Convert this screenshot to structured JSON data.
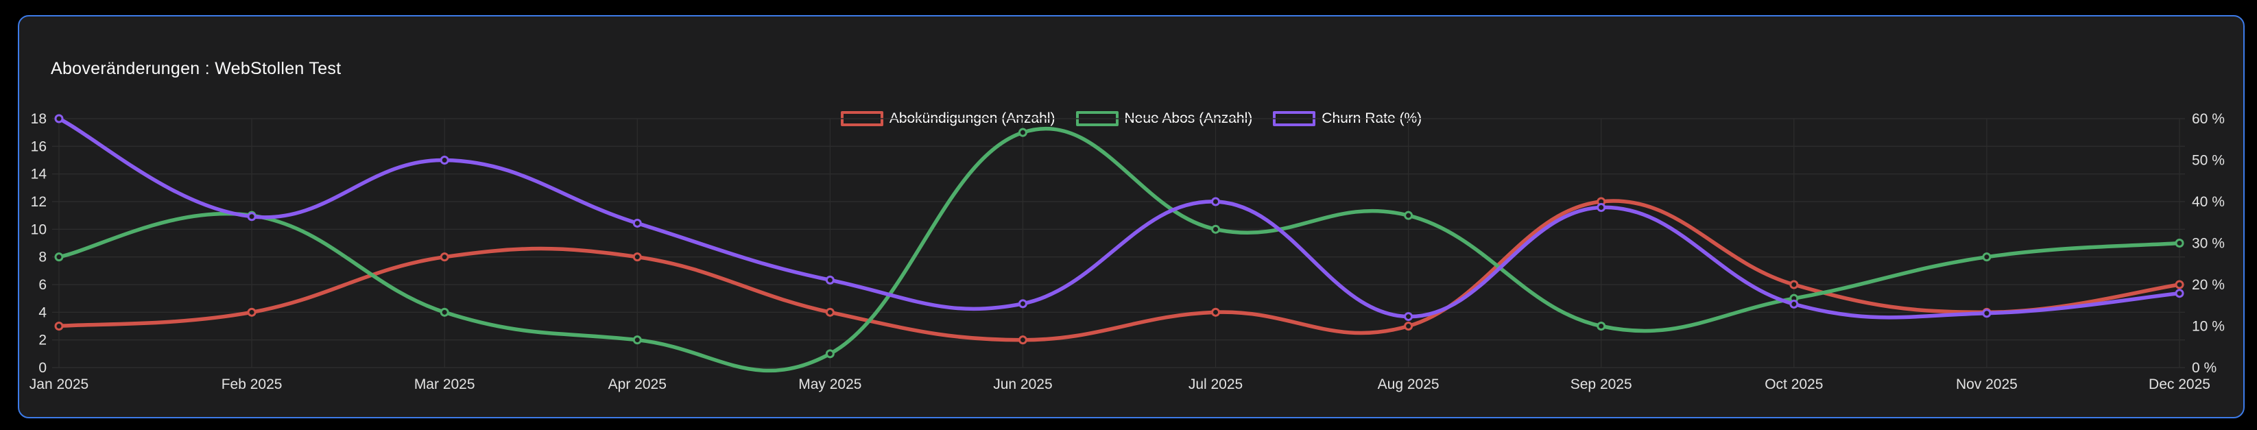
{
  "card": {
    "title": "Aboveränderungen : WebStollen Test",
    "background": "#1d1d1e",
    "border_color": "#3d7be8"
  },
  "chart_data": {
    "type": "line",
    "title": "Aboveränderungen : WebStollen Test",
    "x": [
      "Jan 2025",
      "Feb 2025",
      "Mar 2025",
      "Apr 2025",
      "May 2025",
      "Jun 2025",
      "Jul 2025",
      "Aug 2025",
      "Sep 2025",
      "Oct 2025",
      "Nov 2025",
      "Dec 2025"
    ],
    "series": [
      {
        "name": "Abokündigungen (Anzahl)",
        "axis": "left",
        "color": "#d2544a",
        "values": [
          3,
          4,
          8,
          8,
          4,
          2,
          4,
          3,
          12,
          6,
          4,
          6
        ]
      },
      {
        "name": "Neue Abos (Anzahl)",
        "axis": "left",
        "color": "#4fae6b",
        "values": [
          8,
          11,
          4,
          2,
          1,
          17,
          10,
          11,
          3,
          5,
          8,
          9
        ]
      },
      {
        "name": "Churn Rate (%)",
        "axis": "right",
        "color": "#8a5cf0",
        "values": [
          60,
          36.4,
          50,
          34.8,
          21.1,
          15.4,
          40,
          12.3,
          38.6,
          15.3,
          13.1,
          17.9
        ]
      }
    ],
    "left_axis": {
      "min": 0,
      "max": 18,
      "ticks": [
        0,
        2,
        4,
        6,
        8,
        10,
        12,
        14,
        16,
        18
      ],
      "suffix": ""
    },
    "right_axis": {
      "min": 0,
      "max": 60,
      "ticks": [
        0,
        10,
        20,
        30,
        40,
        50,
        60
      ],
      "suffix": " %"
    },
    "grid": true,
    "legend_position": "top-center",
    "colors": {
      "grid_line": "#2d2d2d",
      "tick_text": "#e3e3e3",
      "point_fill": "#1d1d1e"
    }
  }
}
